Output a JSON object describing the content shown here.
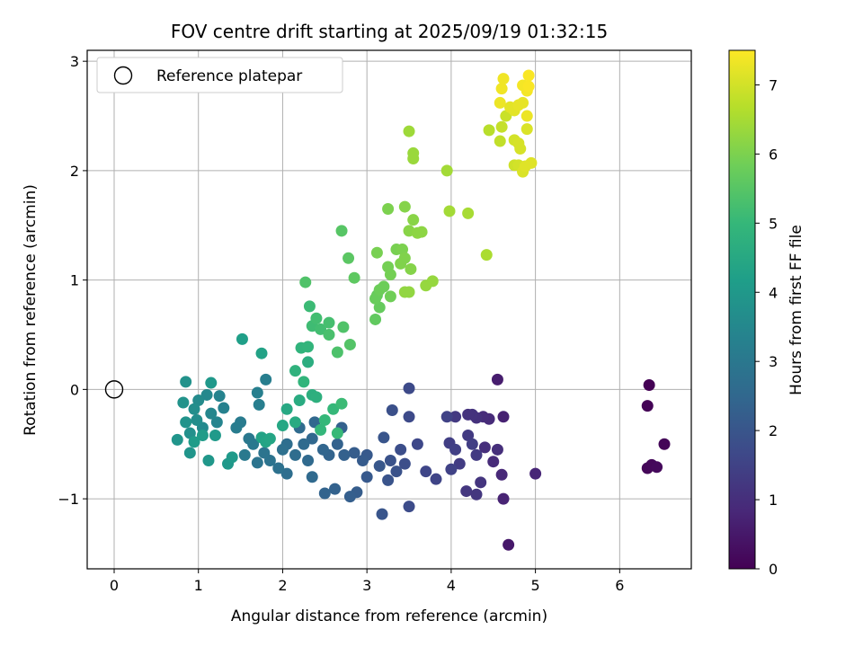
{
  "chart_data": {
    "type": "scatter",
    "title": "FOV centre drift starting at 2025/09/19 01:32:15",
    "xlabel": "Angular distance from reference (arcmin)",
    "ylabel": "Rotation from reference (arcmin)",
    "xlim": [
      -0.32,
      6.85
    ],
    "ylim": [
      -1.64,
      3.1
    ],
    "x_ticks": [
      0,
      1,
      2,
      3,
      4,
      5,
      6
    ],
    "y_ticks": [
      -1,
      0,
      1,
      2,
      3
    ],
    "x_tick_labels": [
      "0",
      "1",
      "2",
      "3",
      "4",
      "5",
      "6"
    ],
    "y_tick_labels": [
      "−1",
      "0",
      "1",
      "2",
      "3"
    ],
    "grid": true,
    "legend": {
      "position": "top-left",
      "label": "Reference platepar"
    },
    "reference_point": {
      "x": 0,
      "y": 0
    },
    "colorbar": {
      "label": "Hours from first FF file",
      "range": [
        0,
        7.5
      ],
      "ticks": [
        0,
        1,
        2,
        3,
        4,
        5,
        6,
        7
      ],
      "tick_labels": [
        "0",
        "1",
        "2",
        "3",
        "4",
        "5",
        "6",
        "7"
      ],
      "colormap": [
        "#440154",
        "#482878",
        "#3e4989",
        "#31688e",
        "#26828e",
        "#1f9e89",
        "#35b779",
        "#6ece58",
        "#b5de2b",
        "#fde725"
      ]
    },
    "points": [
      {
        "x": 6.35,
        "y": 0.04,
        "t": 0.0
      },
      {
        "x": 6.33,
        "y": -0.15,
        "t": 0.05
      },
      {
        "x": 6.53,
        "y": -0.5,
        "t": 0.1
      },
      {
        "x": 6.33,
        "y": -0.72,
        "t": 0.12
      },
      {
        "x": 6.38,
        "y": -0.69,
        "t": 0.15
      },
      {
        "x": 6.44,
        "y": -0.71,
        "t": 0.18
      },
      {
        "x": 4.68,
        "y": -1.42,
        "t": 0.5
      },
      {
        "x": 4.55,
        "y": 0.09,
        "t": 0.6
      },
      {
        "x": 4.62,
        "y": -0.25,
        "t": 0.7
      },
      {
        "x": 4.62,
        "y": -1.0,
        "t": 0.75
      },
      {
        "x": 5.0,
        "y": -0.77,
        "t": 0.8
      },
      {
        "x": 4.6,
        "y": -0.78,
        "t": 0.85
      },
      {
        "x": 4.5,
        "y": -0.66,
        "t": 0.9
      },
      {
        "x": 4.45,
        "y": -0.27,
        "t": 0.9
      },
      {
        "x": 4.38,
        "y": -0.25,
        "t": 0.95
      },
      {
        "x": 4.55,
        "y": -0.55,
        "t": 1.0
      },
      {
        "x": 4.4,
        "y": -0.53,
        "t": 1.0
      },
      {
        "x": 4.3,
        "y": -0.26,
        "t": 1.05
      },
      {
        "x": 4.25,
        "y": -0.23,
        "t": 1.1
      },
      {
        "x": 4.2,
        "y": -0.23,
        "t": 1.1
      },
      {
        "x": 4.35,
        "y": -0.85,
        "t": 1.15
      },
      {
        "x": 4.3,
        "y": -0.96,
        "t": 1.2
      },
      {
        "x": 4.18,
        "y": -0.93,
        "t": 1.2
      },
      {
        "x": 4.05,
        "y": -0.25,
        "t": 1.25
      },
      {
        "x": 4.2,
        "y": -0.42,
        "t": 1.3
      },
      {
        "x": 4.3,
        "y": -0.6,
        "t": 1.3
      },
      {
        "x": 4.1,
        "y": -0.68,
        "t": 1.35
      },
      {
        "x": 4.25,
        "y": -0.5,
        "t": 1.4
      },
      {
        "x": 3.98,
        "y": -0.49,
        "t": 1.4
      },
      {
        "x": 4.05,
        "y": -0.55,
        "t": 1.45
      },
      {
        "x": 3.95,
        "y": -0.25,
        "t": 1.5
      },
      {
        "x": 4.0,
        "y": -0.73,
        "t": 1.5
      },
      {
        "x": 3.82,
        "y": -0.82,
        "t": 1.55
      },
      {
        "x": 3.7,
        "y": -0.75,
        "t": 1.6
      },
      {
        "x": 3.6,
        "y": -0.5,
        "t": 1.65
      },
      {
        "x": 3.5,
        "y": 0.01,
        "t": 1.7
      },
      {
        "x": 3.5,
        "y": -0.25,
        "t": 1.7
      },
      {
        "x": 3.5,
        "y": -1.07,
        "t": 1.75
      },
      {
        "x": 3.4,
        "y": -0.55,
        "t": 1.8
      },
      {
        "x": 3.45,
        "y": -0.68,
        "t": 1.8
      },
      {
        "x": 3.3,
        "y": -0.19,
        "t": 1.85
      },
      {
        "x": 3.28,
        "y": -0.65,
        "t": 1.9
      },
      {
        "x": 3.35,
        "y": -0.75,
        "t": 1.9
      },
      {
        "x": 3.25,
        "y": -0.83,
        "t": 1.95
      },
      {
        "x": 3.2,
        "y": -0.44,
        "t": 2.0
      },
      {
        "x": 3.18,
        "y": -1.14,
        "t": 2.0
      },
      {
        "x": 3.15,
        "y": -0.7,
        "t": 2.05
      },
      {
        "x": 3.0,
        "y": -0.6,
        "t": 2.1
      },
      {
        "x": 3.0,
        "y": -0.8,
        "t": 2.1
      },
      {
        "x": 2.95,
        "y": -0.65,
        "t": 2.15
      },
      {
        "x": 2.85,
        "y": -0.58,
        "t": 2.2
      },
      {
        "x": 2.88,
        "y": -0.94,
        "t": 2.2
      },
      {
        "x": 2.8,
        "y": -0.98,
        "t": 2.25
      },
      {
        "x": 2.73,
        "y": -0.6,
        "t": 2.3
      },
      {
        "x": 2.7,
        "y": -0.35,
        "t": 2.3
      },
      {
        "x": 2.65,
        "y": -0.5,
        "t": 2.35
      },
      {
        "x": 2.62,
        "y": -0.91,
        "t": 2.35
      },
      {
        "x": 2.55,
        "y": -0.6,
        "t": 2.4
      },
      {
        "x": 2.5,
        "y": -0.95,
        "t": 2.4
      },
      {
        "x": 2.48,
        "y": -0.55,
        "t": 2.45
      },
      {
        "x": 2.38,
        "y": -0.3,
        "t": 2.5
      },
      {
        "x": 2.35,
        "y": -0.45,
        "t": 2.5
      },
      {
        "x": 2.3,
        "y": -0.65,
        "t": 2.55
      },
      {
        "x": 2.35,
        "y": -0.8,
        "t": 2.55
      },
      {
        "x": 2.25,
        "y": -0.5,
        "t": 2.6
      },
      {
        "x": 2.2,
        "y": -0.35,
        "t": 2.6
      },
      {
        "x": 2.15,
        "y": -0.6,
        "t": 2.65
      },
      {
        "x": 2.05,
        "y": -0.5,
        "t": 2.7
      },
      {
        "x": 2.05,
        "y": -0.77,
        "t": 2.7
      },
      {
        "x": 2.0,
        "y": -0.55,
        "t": 2.75
      },
      {
        "x": 1.95,
        "y": -0.72,
        "t": 2.8
      },
      {
        "x": 1.85,
        "y": -0.65,
        "t": 2.85
      },
      {
        "x": 1.78,
        "y": -0.58,
        "t": 2.9
      },
      {
        "x": 1.7,
        "y": -0.67,
        "t": 2.9
      },
      {
        "x": 1.65,
        "y": -0.5,
        "t": 3.0
      },
      {
        "x": 1.6,
        "y": -0.45,
        "t": 3.0
      },
      {
        "x": 1.55,
        "y": -0.6,
        "t": 3.05
      },
      {
        "x": 1.5,
        "y": -0.3,
        "t": 3.1
      },
      {
        "x": 1.45,
        "y": -0.35,
        "t": 3.15
      },
      {
        "x": 1.8,
        "y": 0.09,
        "t": 3.2
      },
      {
        "x": 1.72,
        "y": -0.14,
        "t": 3.2
      },
      {
        "x": 1.7,
        "y": -0.03,
        "t": 3.25
      },
      {
        "x": 1.3,
        "y": -0.17,
        "t": 3.3
      },
      {
        "x": 1.25,
        "y": -0.06,
        "t": 3.35
      },
      {
        "x": 1.22,
        "y": -0.3,
        "t": 3.4
      },
      {
        "x": 1.15,
        "y": -0.22,
        "t": 3.45
      },
      {
        "x": 1.1,
        "y": -0.05,
        "t": 3.5
      },
      {
        "x": 1.05,
        "y": -0.35,
        "t": 3.55
      },
      {
        "x": 1.0,
        "y": -0.1,
        "t": 3.6
      },
      {
        "x": 0.98,
        "y": -0.28,
        "t": 3.65
      },
      {
        "x": 0.95,
        "y": -0.18,
        "t": 3.7
      },
      {
        "x": 0.9,
        "y": -0.4,
        "t": 3.75
      },
      {
        "x": 0.85,
        "y": 0.07,
        "t": 3.8
      },
      {
        "x": 0.82,
        "y": -0.12,
        "t": 3.85
      },
      {
        "x": 0.85,
        "y": -0.3,
        "t": 3.85
      },
      {
        "x": 0.75,
        "y": -0.46,
        "t": 3.9
      },
      {
        "x": 0.9,
        "y": -0.58,
        "t": 3.9
      },
      {
        "x": 1.12,
        "y": -0.65,
        "t": 3.95
      },
      {
        "x": 1.15,
        "y": 0.06,
        "t": 4.0
      },
      {
        "x": 1.35,
        "y": -0.68,
        "t": 4.0
      },
      {
        "x": 1.4,
        "y": -0.62,
        "t": 4.05
      },
      {
        "x": 1.2,
        "y": -0.42,
        "t": 4.05
      },
      {
        "x": 0.95,
        "y": -0.48,
        "t": 4.1
      },
      {
        "x": 1.05,
        "y": -0.42,
        "t": 4.1
      },
      {
        "x": 1.52,
        "y": 0.46,
        "t": 4.2
      },
      {
        "x": 1.75,
        "y": 0.33,
        "t": 4.3
      },
      {
        "x": 1.75,
        "y": -0.44,
        "t": 4.3
      },
      {
        "x": 1.8,
        "y": -0.48,
        "t": 4.35
      },
      {
        "x": 1.85,
        "y": -0.45,
        "t": 4.4
      },
      {
        "x": 2.0,
        "y": -0.33,
        "t": 4.45
      },
      {
        "x": 2.05,
        "y": -0.18,
        "t": 4.5
      },
      {
        "x": 2.15,
        "y": -0.3,
        "t": 4.55
      },
      {
        "x": 2.2,
        "y": -0.1,
        "t": 4.6
      },
      {
        "x": 2.3,
        "y": 0.25,
        "t": 4.65
      },
      {
        "x": 2.35,
        "y": -0.05,
        "t": 4.7
      },
      {
        "x": 2.4,
        "y": -0.07,
        "t": 4.75
      },
      {
        "x": 2.15,
        "y": 0.17,
        "t": 4.8
      },
      {
        "x": 2.22,
        "y": 0.38,
        "t": 4.85
      },
      {
        "x": 2.3,
        "y": 0.39,
        "t": 4.9
      },
      {
        "x": 2.25,
        "y": 0.07,
        "t": 4.9
      },
      {
        "x": 2.45,
        "y": -0.37,
        "t": 4.95
      },
      {
        "x": 2.5,
        "y": -0.28,
        "t": 5.0
      },
      {
        "x": 2.6,
        "y": -0.18,
        "t": 5.0
      },
      {
        "x": 2.65,
        "y": -0.4,
        "t": 5.05
      },
      {
        "x": 2.7,
        "y": -0.13,
        "t": 5.1
      },
      {
        "x": 2.32,
        "y": 0.76,
        "t": 5.1
      },
      {
        "x": 2.35,
        "y": 0.58,
        "t": 5.15
      },
      {
        "x": 2.4,
        "y": 0.65,
        "t": 5.2
      },
      {
        "x": 2.45,
        "y": 0.55,
        "t": 5.2
      },
      {
        "x": 2.55,
        "y": 0.61,
        "t": 5.25
      },
      {
        "x": 2.55,
        "y": 0.5,
        "t": 5.3
      },
      {
        "x": 2.65,
        "y": 0.34,
        "t": 5.35
      },
      {
        "x": 2.72,
        "y": 0.57,
        "t": 5.4
      },
      {
        "x": 2.8,
        "y": 0.41,
        "t": 5.45
      },
      {
        "x": 2.27,
        "y": 0.98,
        "t": 5.4
      },
      {
        "x": 2.7,
        "y": 1.45,
        "t": 5.5
      },
      {
        "x": 2.78,
        "y": 1.2,
        "t": 5.55
      },
      {
        "x": 2.85,
        "y": 1.02,
        "t": 5.6
      },
      {
        "x": 3.1,
        "y": 0.64,
        "t": 5.65
      },
      {
        "x": 3.15,
        "y": 0.75,
        "t": 5.7
      },
      {
        "x": 3.12,
        "y": 0.86,
        "t": 5.7
      },
      {
        "x": 3.1,
        "y": 0.83,
        "t": 5.75
      },
      {
        "x": 3.15,
        "y": 0.91,
        "t": 5.8
      },
      {
        "x": 3.2,
        "y": 0.94,
        "t": 5.8
      },
      {
        "x": 3.28,
        "y": 0.85,
        "t": 5.85
      },
      {
        "x": 3.25,
        "y": 1.12,
        "t": 5.9
      },
      {
        "x": 3.28,
        "y": 1.05,
        "t": 5.9
      },
      {
        "x": 3.35,
        "y": 1.28,
        "t": 5.95
      },
      {
        "x": 3.12,
        "y": 1.25,
        "t": 5.95
      },
      {
        "x": 3.25,
        "y": 1.65,
        "t": 6.0
      },
      {
        "x": 3.42,
        "y": 1.28,
        "t": 6.0
      },
      {
        "x": 3.4,
        "y": 1.15,
        "t": 6.05
      },
      {
        "x": 3.45,
        "y": 1.2,
        "t": 6.05
      },
      {
        "x": 3.52,
        "y": 1.1,
        "t": 6.1
      },
      {
        "x": 3.45,
        "y": 1.67,
        "t": 6.1
      },
      {
        "x": 3.5,
        "y": 1.45,
        "t": 6.15
      },
      {
        "x": 3.55,
        "y": 1.55,
        "t": 6.15
      },
      {
        "x": 3.6,
        "y": 1.43,
        "t": 6.2
      },
      {
        "x": 3.65,
        "y": 1.44,
        "t": 6.2
      },
      {
        "x": 3.45,
        "y": 0.89,
        "t": 6.25
      },
      {
        "x": 3.5,
        "y": 0.89,
        "t": 6.25
      },
      {
        "x": 3.7,
        "y": 0.95,
        "t": 6.3
      },
      {
        "x": 3.78,
        "y": 0.99,
        "t": 6.3
      },
      {
        "x": 3.55,
        "y": 2.11,
        "t": 6.35
      },
      {
        "x": 3.55,
        "y": 2.16,
        "t": 6.35
      },
      {
        "x": 3.5,
        "y": 2.36,
        "t": 6.4
      },
      {
        "x": 3.95,
        "y": 2.0,
        "t": 6.45
      },
      {
        "x": 3.98,
        "y": 1.63,
        "t": 6.45
      },
      {
        "x": 4.2,
        "y": 1.61,
        "t": 6.5
      },
      {
        "x": 4.42,
        "y": 1.23,
        "t": 6.55
      },
      {
        "x": 4.45,
        "y": 2.37,
        "t": 6.7
      },
      {
        "x": 4.58,
        "y": 2.27,
        "t": 6.8
      },
      {
        "x": 4.6,
        "y": 2.4,
        "t": 6.85
      },
      {
        "x": 4.65,
        "y": 2.5,
        "t": 6.9
      },
      {
        "x": 4.75,
        "y": 2.05,
        "t": 6.95
      },
      {
        "x": 4.8,
        "y": 2.05,
        "t": 7.0
      },
      {
        "x": 4.75,
        "y": 2.28,
        "t": 7.0
      },
      {
        "x": 4.8,
        "y": 2.25,
        "t": 7.05
      },
      {
        "x": 4.82,
        "y": 2.2,
        "t": 7.05
      },
      {
        "x": 4.85,
        "y": 1.99,
        "t": 7.1
      },
      {
        "x": 4.9,
        "y": 2.38,
        "t": 7.1
      },
      {
        "x": 4.88,
        "y": 2.04,
        "t": 7.15
      },
      {
        "x": 4.95,
        "y": 2.07,
        "t": 7.15
      },
      {
        "x": 4.7,
        "y": 2.58,
        "t": 7.2
      },
      {
        "x": 4.75,
        "y": 2.55,
        "t": 7.2
      },
      {
        "x": 4.8,
        "y": 2.6,
        "t": 7.25
      },
      {
        "x": 4.85,
        "y": 2.62,
        "t": 7.25
      },
      {
        "x": 4.9,
        "y": 2.5,
        "t": 7.3
      },
      {
        "x": 4.58,
        "y": 2.62,
        "t": 7.3
      },
      {
        "x": 4.6,
        "y": 2.75,
        "t": 7.35
      },
      {
        "x": 4.62,
        "y": 2.84,
        "t": 7.35
      },
      {
        "x": 4.85,
        "y": 2.78,
        "t": 7.4
      },
      {
        "x": 4.9,
        "y": 2.73,
        "t": 7.4
      },
      {
        "x": 4.92,
        "y": 2.77,
        "t": 7.45
      },
      {
        "x": 4.92,
        "y": 2.87,
        "t": 7.45
      }
    ]
  }
}
